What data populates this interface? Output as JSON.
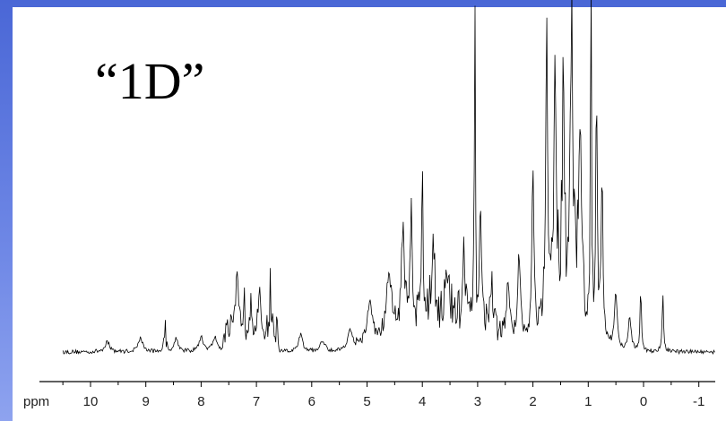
{
  "slide": {
    "title": "“1D”",
    "background_color": "#5d78e0",
    "panel_color": "#ffffff"
  },
  "chart_data": {
    "type": "line",
    "title": "“1D”",
    "xlabel": "ppm",
    "ylabel": "",
    "x_direction": "reversed",
    "xlim": [
      10.5,
      -1.5
    ],
    "ylim": [
      -0.05,
      1.0
    ],
    "grid": false,
    "legend": "none",
    "line_color": "#000000",
    "tick_values": [
      10,
      9,
      8,
      7,
      6,
      5,
      4,
      3,
      2,
      1,
      0,
      -1
    ],
    "tick_labels": [
      "10",
      "9",
      "8",
      "7",
      "6",
      "5",
      "4",
      "3",
      "2",
      "1",
      "0",
      "-1"
    ],
    "axis_unit_label": "ppm",
    "peaks": [
      {
        "ppm": 9.7,
        "intensity": 0.03,
        "width": 0.05
      },
      {
        "ppm": 9.1,
        "intensity": 0.04,
        "width": 0.05
      },
      {
        "ppm": 8.65,
        "intensity": 0.14,
        "width": 0.015
      },
      {
        "ppm": 8.45,
        "intensity": 0.04,
        "width": 0.04
      },
      {
        "ppm": 8.0,
        "intensity": 0.04,
        "width": 0.05
      },
      {
        "ppm": 7.75,
        "intensity": 0.04,
        "width": 0.05
      },
      {
        "ppm": 7.35,
        "intensity": 0.17,
        "width": 0.02
      },
      {
        "ppm": 7.22,
        "intensity": 0.13,
        "width": 0.02
      },
      {
        "ppm": 7.1,
        "intensity": 0.11,
        "width": 0.02
      },
      {
        "ppm": 6.95,
        "intensity": 0.1,
        "width": 0.02
      },
      {
        "ppm": 6.75,
        "intensity": 0.22,
        "width": 0.012
      },
      {
        "ppm": 6.2,
        "intensity": 0.05,
        "width": 0.04
      },
      {
        "ppm": 5.8,
        "intensity": 0.03,
        "width": 0.05
      },
      {
        "ppm": 5.3,
        "intensity": 0.06,
        "width": 0.06
      },
      {
        "ppm": 4.95,
        "intensity": 0.12,
        "width": 0.05
      },
      {
        "ppm": 4.6,
        "intensity": 0.18,
        "width": 0.05
      },
      {
        "ppm": 4.35,
        "intensity": 0.3,
        "width": 0.03
      },
      {
        "ppm": 4.2,
        "intensity": 0.38,
        "width": 0.02
      },
      {
        "ppm": 4.0,
        "intensity": 0.45,
        "width": 0.015
      },
      {
        "ppm": 3.8,
        "intensity": 0.22,
        "width": 0.03
      },
      {
        "ppm": 3.55,
        "intensity": 0.1,
        "width": 0.04
      },
      {
        "ppm": 3.25,
        "intensity": 0.2,
        "width": 0.02
      },
      {
        "ppm": 3.05,
        "intensity": 0.96,
        "width": 0.01
      },
      {
        "ppm": 2.95,
        "intensity": 0.35,
        "width": 0.02
      },
      {
        "ppm": 2.75,
        "intensity": 0.14,
        "width": 0.03
      },
      {
        "ppm": 2.45,
        "intensity": 0.17,
        "width": 0.03
      },
      {
        "ppm": 2.25,
        "intensity": 0.24,
        "width": 0.03
      },
      {
        "ppm": 2.0,
        "intensity": 0.5,
        "width": 0.02
      },
      {
        "ppm": 1.75,
        "intensity": 0.78,
        "width": 0.02
      },
      {
        "ppm": 1.6,
        "intensity": 0.72,
        "width": 0.02
      },
      {
        "ppm": 1.45,
        "intensity": 0.67,
        "width": 0.02
      },
      {
        "ppm": 1.3,
        "intensity": 0.79,
        "width": 0.02
      },
      {
        "ppm": 1.15,
        "intensity": 0.55,
        "width": 0.02
      },
      {
        "ppm": 0.95,
        "intensity": 1.0,
        "width": 0.01
      },
      {
        "ppm": 0.85,
        "intensity": 0.73,
        "width": 0.015
      },
      {
        "ppm": 0.75,
        "intensity": 0.45,
        "width": 0.02
      },
      {
        "ppm": 0.5,
        "intensity": 0.16,
        "width": 0.03
      },
      {
        "ppm": 0.25,
        "intensity": 0.1,
        "width": 0.03
      },
      {
        "ppm": 0.05,
        "intensity": 0.18,
        "width": 0.015
      },
      {
        "ppm": -0.35,
        "intensity": 0.16,
        "width": 0.015
      }
    ]
  }
}
